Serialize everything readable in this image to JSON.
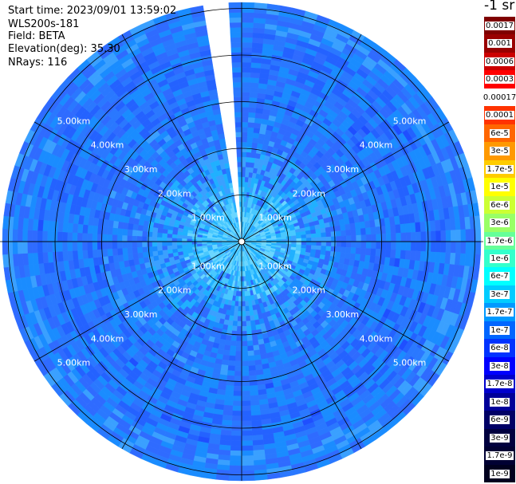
{
  "header": {
    "start_time": "Start time: 2023/09/01 13:59:02",
    "instrument": "WLS200s-181",
    "field": "Field: BETA",
    "elevation": "Elevation(deg): 35.30",
    "nrays": "NRays: 116"
  },
  "colorbar": {
    "units": "-1 sr",
    "labels": [
      "0.0017",
      "0.001",
      "0.0006",
      "0.0003",
      "0.00017",
      "0.0001",
      "6e-5",
      "3e-5",
      "1.7e-5",
      "1e-5",
      "6e-6",
      "3e-6",
      "1.7e-6",
      "1e-6",
      "6e-7",
      "3e-7",
      "1.7e-7",
      "1e-7",
      "6e-8",
      "3e-8",
      "1.7e-8",
      "1e-8",
      "6e-9",
      "3e-9",
      "1.7e-9",
      "1e-9"
    ],
    "colors": [
      "#7f0000",
      "#990000",
      "#cc0000",
      "#ff0000",
      "#ffffff",
      "#ff3300",
      "#ff6600",
      "#ff9900",
      "#ffcc00",
      "#ffff00",
      "#ccff33",
      "#99ff66",
      "#66ff99",
      "#33ffcc",
      "#00ffff",
      "#00ccff",
      "#0099ff",
      "#0066ff",
      "#0033ff",
      "#0000ff",
      "#0000cc",
      "#000099",
      "#000066",
      "#00003f",
      "#000033",
      "#00001f"
    ]
  },
  "chart_data": {
    "type": "heatmap",
    "title": "",
    "field": "BETA",
    "units": "-1 sr",
    "elevation_deg": 35.3,
    "nrays": 116,
    "max_range_km": 5.7,
    "range_ring_labels_km": [
      "1.00km",
      "2.00km",
      "3.00km",
      "4.00km",
      "5.00km"
    ],
    "range_rings_km": [
      1,
      2,
      3,
      4,
      5
    ],
    "spokes_deg": [
      0,
      30,
      60,
      90,
      120,
      150,
      180,
      210,
      240,
      270,
      300,
      330
    ],
    "missing_sector_deg": [
      -10,
      -4
    ],
    "color_levels": [
      "1e-9",
      "1.7e-9",
      "3e-9",
      "6e-9",
      "1e-8",
      "1.7e-8",
      "3e-8",
      "6e-8",
      "1e-7",
      "1.7e-7",
      "3e-7",
      "6e-7",
      "1e-6",
      "1.7e-6",
      "3e-6",
      "6e-6",
      "1e-5",
      "1.7e-5",
      "3e-5",
      "6e-5",
      "0.0001",
      "0.00017",
      "0.0003",
      "0.0006",
      "0.001",
      "0.0017"
    ],
    "typical_values": [
      {
        "range_km": 0.5,
        "value": "1.7e-7"
      },
      {
        "range_km": 1.0,
        "value": "1e-7"
      },
      {
        "range_km": 2.0,
        "value": "6e-8"
      },
      {
        "range_km": 3.0,
        "value": "3e-8"
      },
      {
        "range_km": 4.5,
        "value": "3e-8"
      },
      {
        "range_km": 5.5,
        "value": "6e-8"
      }
    ]
  }
}
